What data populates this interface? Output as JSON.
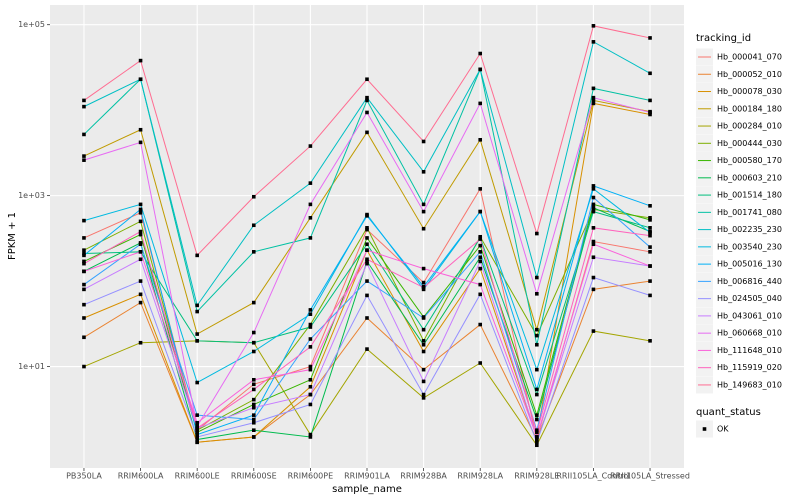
{
  "chart_data": {
    "type": "line",
    "x_label": "sample_name",
    "y_label": "FPKM + 1",
    "log_y": true,
    "grid": true,
    "legend_title": "tracking_id",
    "legend_position": "right",
    "point_legend": {
      "title": "quant_status",
      "levels": [
        "OK"
      ],
      "color": "#000000"
    },
    "categories": [
      "PB350LA",
      "RRIM600LA",
      "RRIM600LE",
      "RRIM600SE",
      "RRIM600PE",
      "RRIM901LA",
      "RRIM928BA",
      "RRIM928LA",
      "RRIM928LE",
      "RRII105LA_Control",
      "RRII105LA_Stressed"
    ],
    "ylim": [
      0.65,
      170000
    ],
    "yticks": [
      {
        "value": 10,
        "label": "1e+01"
      },
      {
        "value": 1000,
        "label": "1e+03"
      },
      {
        "value": 100000,
        "label": "1e+05"
      }
    ],
    "series": [
      {
        "name": "Hb_000041_070",
        "color": "#F8766D",
        "values": [
          320,
          630,
          1.8,
          6.2,
          10,
          400,
          96,
          1200,
          1.4,
          290,
          220
        ]
      },
      {
        "name": "Hb_000052_010",
        "color": "#EA8331",
        "values": [
          22,
          56,
          1.3,
          1.5,
          4.7,
          37,
          9.2,
          31,
          1.4,
          80,
          100
        ]
      },
      {
        "name": "Hb_000078_030",
        "color": "#D89000",
        "values": [
          37,
          70,
          1.3,
          1.5,
          5.8,
          230,
          15,
          140,
          1.5,
          12000,
          8900
        ]
      },
      {
        "name": "Hb_000184_180",
        "color": "#C09B00",
        "values": [
          2900,
          5900,
          24,
          56,
          550,
          5500,
          410,
          4500,
          27,
          13000,
          9600
        ]
      },
      {
        "name": "Hb_000284_010",
        "color": "#A3A500",
        "values": [
          10,
          19,
          20,
          19,
          1.6,
          16,
          4.3,
          11,
          1.2,
          26,
          20
        ]
      },
      {
        "name": "Hb_000444_030",
        "color": "#7CAE00",
        "values": [
          230,
          500,
          1.8,
          4.1,
          31,
          420,
          20,
          330,
          23,
          690,
          550
        ]
      },
      {
        "name": "Hb_000580_170",
        "color": "#39B600",
        "values": [
          170,
          350,
          1.7,
          3.6,
          7.0,
          320,
          38,
          260,
          2.7,
          790,
          520
        ]
      },
      {
        "name": "Hb_000603_210",
        "color": "#00BB4E",
        "values": [
          130,
          280,
          1.4,
          1.8,
          1.5,
          170,
          18,
          190,
          2.4,
          720,
          380
        ]
      },
      {
        "name": "Hb_001514_180",
        "color": "#00BF7D",
        "values": [
          210,
          220,
          20,
          19,
          29,
          270,
          27,
          320,
          4.7,
          650,
          420
        ]
      },
      {
        "name": "Hb_001741_080",
        "color": "#00C1A3",
        "values": [
          5200,
          23000,
          44,
          220,
          320,
          13000,
          790,
          30000,
          18,
          18000,
          13000
        ]
      },
      {
        "name": "Hb_002235_230",
        "color": "#00BFC4",
        "values": [
          11000,
          23000,
          52,
          450,
          1400,
          14000,
          1900,
          30000,
          110,
          63000,
          27000
        ]
      },
      {
        "name": "Hb_003540_230",
        "color": "#00BAE0",
        "values": [
          510,
          790,
          6.5,
          15,
          41,
          600,
          80,
          650,
          9.2,
          1200,
          370
        ]
      },
      {
        "name": "Hb_005016_130",
        "color": "#00B0F6",
        "values": [
          200,
          690,
          1.6,
          2.7,
          46,
          580,
          86,
          650,
          5.4,
          1300,
          760
        ]
      },
      {
        "name": "Hb_006816_440",
        "color": "#35A2FF",
        "values": [
          91,
          270,
          2.7,
          2.4,
          21,
          100,
          37,
          220,
          1.8,
          950,
          250
        ]
      },
      {
        "name": "Hb_024505_040",
        "color": "#9590FF",
        "values": [
          53,
          100,
          1.5,
          2.2,
          3.6,
          68,
          4.7,
          70,
          1.3,
          110,
          68
        ]
      },
      {
        "name": "Hb_043061_010",
        "color": "#C77CFF",
        "values": [
          80,
          180,
          1.9,
          3.3,
          4.7,
          160,
          6.7,
          170,
          1.5,
          190,
          150
        ]
      },
      {
        "name": "Hb_060668_010",
        "color": "#E76BF3",
        "values": [
          2600,
          4200,
          2.0,
          25,
          790,
          9400,
          650,
          12000,
          71,
          14000,
          9400
        ]
      },
      {
        "name": "Hb_111648_010",
        "color": "#FA62DB",
        "values": [
          130,
          220,
          2.2,
          7.0,
          9.2,
          230,
          140,
          91,
          1.5,
          270,
          150
        ]
      },
      {
        "name": "Hb_115919_020",
        "color": "#FF62BC",
        "values": [
          160,
          380,
          1.9,
          5.4,
          17,
          180,
          84,
          310,
          1.7,
          420,
          340
        ]
      },
      {
        "name": "Hb_149683_010",
        "color": "#FF6C91",
        "values": [
          13000,
          38000,
          200,
          970,
          3800,
          23000,
          4300,
          46000,
          360,
          97000,
          70000
        ]
      }
    ]
  }
}
